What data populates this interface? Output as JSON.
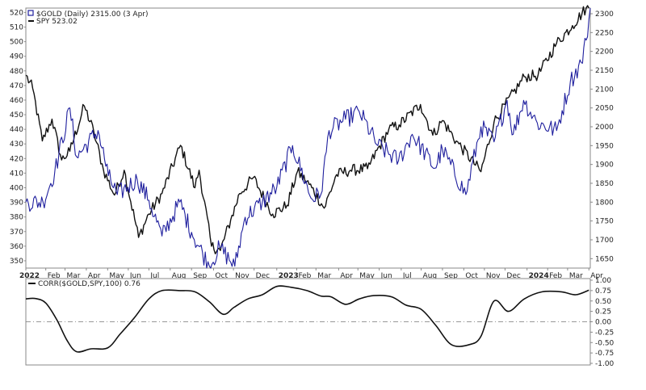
{
  "chart_data": [
    {
      "type": "line",
      "legend": [
        {
          "label": "$GOLD (Daily) 2315.00 (3 Apr)",
          "color": "#1f1f9e"
        },
        {
          "label": "SPY 523.02",
          "color": "#111111"
        }
      ],
      "x_ticks": [
        "2022",
        "Feb",
        "Mar",
        "Apr",
        "May",
        "Jun",
        "Jul",
        "Aug",
        "Sep",
        "Oct",
        "Nov",
        "Dec",
        "2023",
        "Feb",
        "Mar",
        "Apr",
        "May",
        "Jun",
        "Jul",
        "Aug",
        "Sep",
        "Oct",
        "Nov",
        "Dec",
        "2024",
        "Feb",
        "Mar",
        "Apr"
      ],
      "left_axis": {
        "ticks": [
          350,
          360,
          370,
          380,
          390,
          400,
          410,
          420,
          430,
          440,
          450,
          460,
          470,
          480,
          490,
          500,
          510,
          520
        ],
        "range": [
          345,
          523
        ]
      },
      "right_axis": {
        "ticks": [
          1650,
          1700,
          1750,
          1800,
          1850,
          1900,
          1950,
          2000,
          2050,
          2100,
          2150,
          2200,
          2250,
          2300
        ],
        "range": [
          1625,
          2315
        ]
      },
      "series": [
        {
          "name": "SPY",
          "axis": "left",
          "color": "#111111",
          "x": [
            "2022-01-03",
            "2022-01-13",
            "2022-01-27",
            "2022-02-10",
            "2022-02-24",
            "2022-03-08",
            "2022-03-29",
            "2022-04-12",
            "2022-04-26",
            "2022-05-12",
            "2022-05-26",
            "2022-06-16",
            "2022-07-01",
            "2022-07-20",
            "2022-08-16",
            "2022-09-06",
            "2022-09-12",
            "2022-09-30",
            "2022-10-13",
            "2022-10-28",
            "2022-11-10",
            "2022-11-30",
            "2022-12-28",
            "2023-01-18",
            "2023-02-02",
            "2023-02-23",
            "2023-03-13",
            "2023-03-31",
            "2023-04-20",
            "2023-05-15",
            "2023-06-15",
            "2023-06-30",
            "2023-07-31",
            "2023-08-18",
            "2023-09-01",
            "2023-09-21",
            "2023-10-27",
            "2023-11-15",
            "2023-12-29",
            "2024-01-18",
            "2024-02-14",
            "2024-03-08",
            "2024-03-28",
            "2024-04-01"
          ],
          "values": [
            477,
            468,
            432,
            447,
            419,
            425,
            456,
            438,
            412,
            395,
            412,
            366,
            382,
            396,
            429,
            400,
            412,
            360,
            357,
            378,
            396,
            407,
            382,
            388,
            411,
            400,
            386,
            409,
            412,
            413,
            440,
            443,
            457,
            436,
            446,
            432,
            411,
            445,
            476,
            477,
            499,
            511,
            523,
            523
          ]
        },
        {
          "name": "$GOLD",
          "axis": "right",
          "color": "#1f1f9e",
          "x": [
            "2022-01-03",
            "2022-01-28",
            "2022-02-14",
            "2022-03-08",
            "2022-03-18",
            "2022-04-18",
            "2022-05-03",
            "2022-05-16",
            "2022-06-14",
            "2022-07-01",
            "2022-07-20",
            "2022-08-15",
            "2022-09-01",
            "2022-09-27",
            "2022-10-12",
            "2022-11-03",
            "2022-11-18",
            "2022-12-13",
            "2023-01-03",
            "2023-01-26",
            "2023-02-22",
            "2023-03-08",
            "2023-03-20",
            "2023-04-13",
            "2023-05-03",
            "2023-05-30",
            "2023-06-29",
            "2023-07-19",
            "2023-08-21",
            "2023-09-01",
            "2023-10-05",
            "2023-10-27",
            "2023-11-15",
            "2023-12-04",
            "2023-12-13",
            "2023-12-28",
            "2024-01-17",
            "2024-02-14",
            "2024-03-05",
            "2024-03-21",
            "2024-03-28",
            "2024-04-03"
          ],
          "values": [
            1800,
            1800,
            1880,
            2050,
            1920,
            1990,
            1870,
            1820,
            1860,
            1805,
            1710,
            1800,
            1720,
            1630,
            1680,
            1630,
            1760,
            1800,
            1840,
            1950,
            1810,
            1820,
            1990,
            2020,
            2040,
            1950,
            1910,
            1980,
            1890,
            1940,
            1820,
            2000,
            1960,
            2070,
            1980,
            2070,
            2010,
            1990,
            2120,
            2170,
            2230,
            2315
          ]
        }
      ]
    },
    {
      "type": "line",
      "label": "CORR($GOLD,SPY,100) 0.76",
      "color": "#111111",
      "y_ticks": [
        -1.0,
        -0.75,
        -0.5,
        -0.25,
        0.0,
        0.25,
        0.5,
        0.75,
        1.0
      ],
      "y_tick_labels": [
        "-1.00",
        "-0.75",
        "-0.50",
        "-0.25",
        "0.00",
        "0.25",
        "0.50",
        "0.75",
        "1.00"
      ],
      "range": [
        -1.0,
        1.0
      ],
      "zero_line": true,
      "series": [
        {
          "name": "CORR($GOLD,SPY,100)",
          "x": [
            "2022-01-03",
            "2022-01-17",
            "2022-02-01",
            "2022-02-17",
            "2022-03-04",
            "2022-03-18",
            "2022-04-08",
            "2022-05-02",
            "2022-05-20",
            "2022-06-10",
            "2022-07-01",
            "2022-07-20",
            "2022-08-15",
            "2022-09-06",
            "2022-09-27",
            "2022-10-17",
            "2022-11-02",
            "2022-11-22",
            "2022-12-13",
            "2023-01-03",
            "2023-01-24",
            "2023-02-16",
            "2023-03-08",
            "2023-03-23",
            "2023-04-13",
            "2023-05-03",
            "2023-05-24",
            "2023-06-19",
            "2023-07-10",
            "2023-08-01",
            "2023-08-22",
            "2023-09-14",
            "2023-10-10",
            "2023-10-27",
            "2023-11-15",
            "2023-12-06",
            "2023-12-29",
            "2024-01-24",
            "2024-02-21",
            "2024-03-13",
            "2024-04-01"
          ],
          "values": [
            0.55,
            0.56,
            0.45,
            0.05,
            -0.45,
            -0.72,
            -0.65,
            -0.63,
            -0.3,
            0.1,
            0.55,
            0.75,
            0.75,
            0.72,
            0.48,
            0.18,
            0.35,
            0.55,
            0.65,
            0.85,
            0.83,
            0.75,
            0.62,
            0.6,
            0.42,
            0.55,
            0.63,
            0.6,
            0.4,
            0.3,
            -0.08,
            -0.55,
            -0.55,
            -0.35,
            0.5,
            0.25,
            0.55,
            0.72,
            0.72,
            0.65,
            0.76
          ]
        }
      ]
    }
  ]
}
